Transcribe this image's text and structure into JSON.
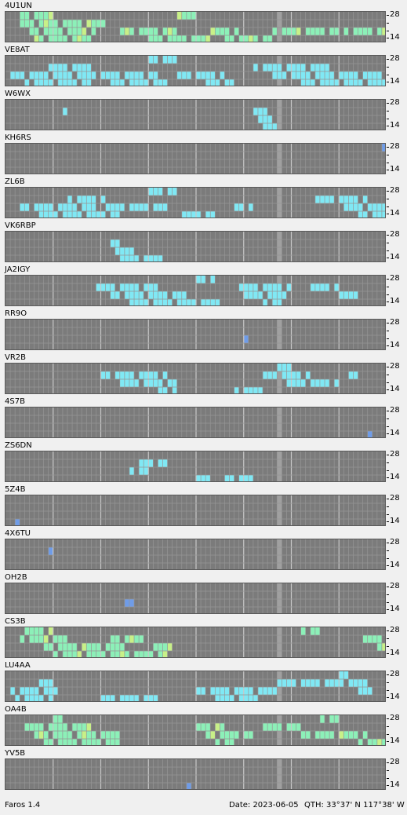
{
  "app": {
    "name": "Faros 1.4"
  },
  "status": {
    "date": "Date: 2023-06-05",
    "qth": "QTH: 33°37' N  117°38' W"
  },
  "axis": {
    "high": "28",
    "low": "14"
  },
  "palette": {
    "background": "#7b7b7b",
    "grid": "#969696",
    "major_grid": "#c8c8c8",
    "now_column": "#a0a0a0",
    "level_1": "#6f9ce8",
    "level_2": "#80e8f4",
    "level_3": "#8cf0b8",
    "level_4": "#c8f088"
  },
  "beacons": [
    {
      "callsign": "4U1UN",
      "level": 3,
      "active": [
        [
          1,
          3,
          18
        ],
        [
          0,
          3,
          8
        ],
        [
          2,
          5,
          14
        ],
        [
          3,
          6,
          12
        ],
        [
          1,
          16,
          4
        ],
        [
          2,
          24,
          12
        ],
        [
          3,
          30,
          14
        ],
        [
          0,
          35,
          6
        ],
        [
          2,
          43,
          6
        ],
        [
          3,
          46,
          10
        ],
        [
          2,
          56,
          14
        ],
        [
          2,
          71,
          10
        ]
      ]
    },
    {
      "callsign": "VE8AT",
      "level": 2,
      "active": [
        [
          2,
          1,
          18
        ],
        [
          3,
          4,
          14
        ],
        [
          1,
          8,
          10
        ],
        [
          2,
          14,
          18
        ],
        [
          3,
          22,
          12
        ],
        [
          0,
          30,
          6
        ],
        [
          2,
          36,
          10
        ],
        [
          3,
          42,
          6
        ],
        [
          1,
          52,
          16
        ],
        [
          2,
          56,
          20
        ],
        [
          3,
          62,
          18
        ],
        [
          2,
          70,
          12
        ]
      ]
    },
    {
      "callsign": "W6WX",
      "level": 2,
      "active": [
        [
          1,
          52,
          3
        ],
        [
          2,
          53,
          3
        ],
        [
          3,
          54,
          4
        ],
        [
          1,
          12,
          1
        ]
      ]
    },
    {
      "callsign": "KH6RS",
      "level": 1,
      "active": [
        [
          0,
          79,
          2
        ]
      ]
    },
    {
      "callsign": "ZL6B",
      "level": 2,
      "active": [
        [
          2,
          3,
          16
        ],
        [
          3,
          6,
          18
        ],
        [
          1,
          13,
          8
        ],
        [
          2,
          20,
          14
        ],
        [
          0,
          30,
          6
        ],
        [
          3,
          36,
          8
        ],
        [
          2,
          48,
          4
        ],
        [
          1,
          64,
          12
        ],
        [
          2,
          70,
          10
        ],
        [
          3,
          74,
          6
        ]
      ]
    },
    {
      "callsign": "VK6RBP",
      "level": 2,
      "active": [
        [
          1,
          22,
          2
        ],
        [
          2,
          22,
          6
        ],
        [
          3,
          24,
          10
        ]
      ]
    },
    {
      "callsign": "JA2IGY",
      "level": 2,
      "active": [
        [
          1,
          18,
          14
        ],
        [
          2,
          22,
          16
        ],
        [
          3,
          26,
          20
        ],
        [
          0,
          40,
          4
        ],
        [
          1,
          48,
          12
        ],
        [
          2,
          50,
          10
        ],
        [
          3,
          54,
          4
        ],
        [
          1,
          64,
          6
        ],
        [
          2,
          70,
          4
        ]
      ]
    },
    {
      "callsign": "RR9O",
      "level": 1,
      "active": [
        [
          2,
          50,
          1
        ]
      ]
    },
    {
      "callsign": "VR2B",
      "level": 2,
      "active": [
        [
          1,
          20,
          14
        ],
        [
          2,
          24,
          12
        ],
        [
          3,
          32,
          4
        ],
        [
          0,
          56,
          4
        ],
        [
          1,
          54,
          10
        ],
        [
          2,
          58,
          12
        ],
        [
          3,
          48,
          6
        ],
        [
          1,
          72,
          2
        ]
      ]
    },
    {
      "callsign": "4S7B",
      "level": 1,
      "active": [
        [
          3,
          76,
          1
        ]
      ]
    },
    {
      "callsign": "ZS6DN",
      "level": 2,
      "active": [
        [
          1,
          28,
          6
        ],
        [
          2,
          26,
          4
        ],
        [
          3,
          40,
          4
        ],
        [
          3,
          46,
          6
        ]
      ]
    },
    {
      "callsign": "5Z4B",
      "level": 1,
      "active": [
        [
          3,
          2,
          1
        ]
      ]
    },
    {
      "callsign": "4X6TU",
      "level": 1,
      "active": [
        [
          1,
          9,
          1
        ]
      ]
    },
    {
      "callsign": "OH2B",
      "level": 1,
      "active": [
        [
          2,
          25,
          2
        ]
      ]
    },
    {
      "callsign": "CS3B",
      "level": 3,
      "active": [
        [
          0,
          4,
          6
        ],
        [
          1,
          3,
          10
        ],
        [
          2,
          8,
          18
        ],
        [
          3,
          10,
          24
        ],
        [
          1,
          22,
          8
        ],
        [
          2,
          30,
          6
        ],
        [
          0,
          62,
          4
        ],
        [
          1,
          74,
          6
        ],
        [
          2,
          78,
          2
        ]
      ]
    },
    {
      "callsign": "LU4AA",
      "level": 2,
      "active": [
        [
          2,
          1,
          10
        ],
        [
          3,
          2,
          8
        ],
        [
          1,
          6,
          4
        ],
        [
          3,
          20,
          12
        ],
        [
          2,
          40,
          18
        ],
        [
          3,
          44,
          10
        ],
        [
          1,
          56,
          20
        ],
        [
          0,
          70,
          2
        ],
        [
          2,
          74,
          4
        ]
      ]
    },
    {
      "callsign": "OA4B",
      "level": 3,
      "active": [
        [
          1,
          4,
          14
        ],
        [
          2,
          6,
          18
        ],
        [
          3,
          8,
          16
        ],
        [
          0,
          10,
          2
        ],
        [
          1,
          40,
          6
        ],
        [
          2,
          42,
          10
        ],
        [
          3,
          44,
          4
        ],
        [
          1,
          54,
          8
        ],
        [
          2,
          62,
          14
        ],
        [
          0,
          66,
          4
        ],
        [
          3,
          74,
          6
        ]
      ]
    },
    {
      "callsign": "YV5B",
      "level": 1,
      "active": [
        [
          3,
          38,
          1
        ]
      ]
    }
  ]
}
